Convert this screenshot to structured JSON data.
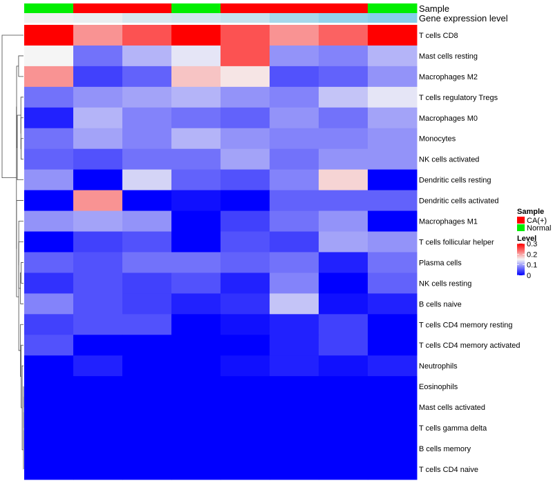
{
  "chart_data": {
    "type": "heatmap",
    "title": "",
    "track_titles": {
      "sample": "Sample",
      "expression": "Gene expression level"
    },
    "sample_track": [
      "Normal",
      "CA(+)",
      "CA(+)",
      "Normal",
      "CA(+)",
      "CA(+)",
      "CA(+)",
      "Normal"
    ],
    "expression_track": [
      0.12,
      0.13,
      0.16,
      0.17,
      0.19,
      0.24,
      0.27,
      0.29
    ],
    "rows": [
      "T cells CD8",
      "Mast cells resting",
      "Macrophages M2",
      "T cells regulatory  Tregs",
      "Macrophages M0",
      "Monocytes",
      "NK cells activated",
      "Dendritic cells resting",
      "Dendritic cells activated",
      "Macrophages M1",
      "T cells follicular helper",
      "Plasma cells",
      "NK cells resting",
      "B cells naive",
      "T cells CD4 memory resting",
      "T cells CD4 memory activated",
      "Neutrophils",
      "Eosinophils",
      "Mast cells activated",
      "T cells gamma delta",
      "B cells memory",
      "T cells CD4 naive"
    ],
    "values": [
      [
        0.3,
        0.21,
        0.25,
        0.3,
        0.25,
        0.21,
        0.24,
        0.3
      ],
      [
        0.15,
        0.07,
        0.11,
        0.14,
        0.25,
        0.09,
        0.08,
        0.11
      ],
      [
        0.21,
        0.04,
        0.06,
        0.18,
        0.16,
        0.05,
        0.06,
        0.09
      ],
      [
        0.07,
        0.09,
        0.1,
        0.11,
        0.09,
        0.08,
        0.12,
        0.14
      ],
      [
        0.02,
        0.11,
        0.08,
        0.07,
        0.06,
        0.09,
        0.07,
        0.1
      ],
      [
        0.07,
        0.1,
        0.08,
        0.11,
        0.09,
        0.08,
        0.08,
        0.09
      ],
      [
        0.06,
        0.05,
        0.07,
        0.07,
        0.1,
        0.07,
        0.09,
        0.09
      ],
      [
        0.09,
        0.0,
        0.13,
        0.06,
        0.05,
        0.08,
        0.17,
        0.0
      ],
      [
        0.0,
        0.21,
        0.0,
        0.01,
        0.0,
        0.06,
        0.06,
        0.06
      ],
      [
        0.09,
        0.1,
        0.09,
        0.0,
        0.04,
        0.07,
        0.09,
        0.0
      ],
      [
        0.0,
        0.04,
        0.05,
        0.0,
        0.05,
        0.04,
        0.1,
        0.09
      ],
      [
        0.06,
        0.05,
        0.07,
        0.07,
        0.06,
        0.07,
        0.02,
        0.07
      ],
      [
        0.03,
        0.05,
        0.04,
        0.05,
        0.02,
        0.08,
        0.0,
        0.06
      ],
      [
        0.08,
        0.05,
        0.04,
        0.02,
        0.03,
        0.12,
        0.01,
        0.02
      ],
      [
        0.04,
        0.05,
        0.05,
        0.0,
        0.01,
        0.02,
        0.04,
        0.0
      ],
      [
        0.05,
        0.0,
        0.0,
        0.0,
        0.0,
        0.02,
        0.04,
        0.0
      ],
      [
        0.0,
        0.02,
        0.0,
        0.0,
        0.01,
        0.02,
        0.01,
        0.02
      ],
      [
        0.0,
        0.0,
        0.0,
        0.0,
        0.0,
        0.0,
        0.0,
        0.0
      ],
      [
        0.0,
        0.0,
        0.0,
        0.0,
        0.0,
        0.0,
        0.0,
        0.0
      ],
      [
        0.0,
        0.0,
        0.0,
        0.0,
        0.0,
        0.0,
        0.0,
        0.0
      ],
      [
        0.0,
        0.0,
        0.0,
        0.0,
        0.0,
        0.0,
        0.0,
        0.0
      ],
      [
        0.0,
        0.0,
        0.0,
        0.0,
        0.0,
        0.0,
        0.0,
        0.0
      ]
    ],
    "color_scale": {
      "min": 0,
      "max": 0.3,
      "low": "#0000ff",
      "mid": "#f5f5f5",
      "high": "#ff0000",
      "midpoint": 0.15
    },
    "expression_color_scale": {
      "min": 0.12,
      "max": 0.29,
      "low": "#f0f0f0",
      "high": "#87ceeb"
    },
    "legends": {
      "sample": {
        "title": "Sample",
        "items": [
          {
            "label": "CA(+)",
            "color": "#ff0000"
          },
          {
            "label": "Normal",
            "color": "#00ee00"
          }
        ]
      },
      "level": {
        "title": "Level",
        "ticks": [
          "0.3",
          "0.2",
          "0.1",
          "0"
        ]
      }
    },
    "legend_position": "right",
    "row_dendrogram": true
  }
}
